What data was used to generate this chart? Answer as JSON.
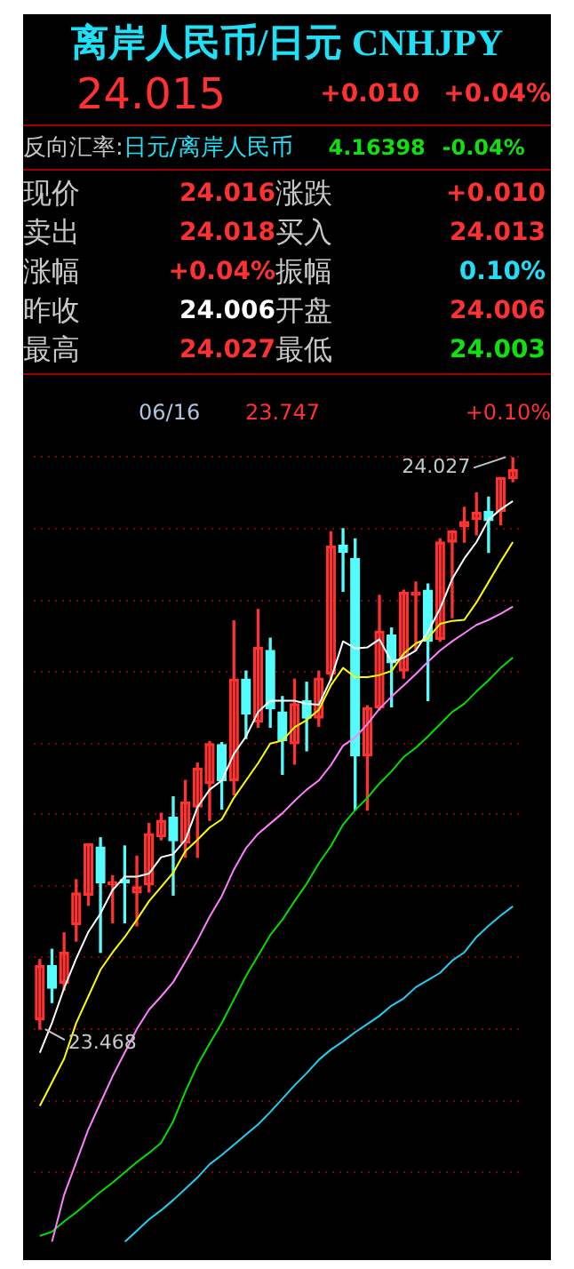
{
  "chart_data": {
    "type": "candlestick",
    "title": "离岸人民币/日元 CNHJPY",
    "annotations": [
      "24.015",
      "+0.010",
      "+0.04%",
      "反向汇率:",
      "日元/离岸人民币",
      "4.16398",
      "-0.04%",
      "现价",
      "24.016",
      "涨跌",
      "+0.010",
      "卖出",
      "24.018",
      "买入",
      "24.013",
      "涨幅",
      "+0.04%",
      "振幅",
      "0.10%",
      "昨收",
      "24.006",
      "开盘",
      "24.006",
      "最高",
      "24.027",
      "最低",
      "24.003",
      "06/16",
      "23.747",
      "+0.10%",
      "24.027",
      "23.468"
    ],
    "categories": [
      null,
      null,
      null,
      null,
      null,
      null,
      null,
      null,
      null,
      null,
      null,
      null,
      null,
      null,
      null,
      null,
      null,
      null,
      null,
      null,
      null,
      null,
      null,
      null,
      null,
      null,
      null,
      null,
      null,
      null,
      null,
      null,
      null,
      null,
      null,
      null,
      null,
      null,
      null,
      null
    ],
    "ohlc": [
      [
        23.477,
        23.536,
        23.468,
        23.53
      ],
      [
        23.53,
        23.546,
        23.494,
        23.508
      ],
      [
        23.513,
        23.562,
        23.506,
        23.543
      ],
      [
        23.57,
        23.614,
        23.554,
        23.601
      ],
      [
        23.599,
        23.649,
        23.589,
        23.649
      ],
      [
        23.646,
        23.655,
        23.543,
        23.611
      ],
      [
        23.609,
        23.618,
        23.572,
        23.612
      ],
      [
        23.614,
        23.647,
        23.572,
        23.611
      ],
      [
        23.601,
        23.637,
        23.569,
        23.607
      ],
      [
        23.609,
        23.669,
        23.602,
        23.659
      ],
      [
        23.656,
        23.679,
        23.653,
        23.672
      ],
      [
        23.675,
        23.695,
        23.599,
        23.652
      ],
      [
        23.65,
        23.711,
        23.636,
        23.69
      ],
      [
        23.685,
        23.728,
        23.636,
        23.723
      ],
      [
        23.708,
        23.749,
        23.672,
        23.747
      ],
      [
        23.746,
        23.748,
        23.683,
        23.711
      ],
      [
        23.711,
        23.867,
        23.697,
        23.81
      ],
      [
        23.81,
        23.818,
        23.752,
        23.776
      ],
      [
        23.768,
        23.878,
        23.763,
        23.841
      ],
      [
        23.838,
        23.85,
        23.763,
        23.781
      ],
      [
        23.778,
        23.793,
        23.717,
        23.75
      ],
      [
        23.747,
        23.81,
        23.727,
        23.786
      ],
      [
        23.789,
        23.807,
        23.74,
        23.772
      ],
      [
        23.772,
        23.818,
        23.764,
        23.811
      ],
      [
        23.815,
        23.954,
        23.809,
        23.94
      ],
      [
        23.941,
        23.957,
        23.896,
        23.934
      ],
      [
        23.928,
        23.947,
        23.682,
        23.735
      ],
      [
        23.735,
        23.784,
        23.682,
        23.782
      ],
      [
        23.782,
        23.892,
        23.78,
        23.857
      ],
      [
        23.853,
        23.86,
        23.783,
        23.826
      ],
      [
        23.818,
        23.897,
        23.811,
        23.895
      ],
      [
        23.892,
        23.905,
        23.838,
        23.895
      ],
      [
        23.897,
        23.903,
        23.789,
        23.847
      ],
      [
        23.849,
        23.947,
        23.847,
        23.944
      ],
      [
        23.944,
        23.955,
        23.87,
        23.955
      ],
      [
        23.959,
        23.978,
        23.944,
        23.964
      ],
      [
        23.966,
        23.992,
        23.951,
        23.973
      ],
      [
        23.974,
        23.988,
        23.934,
        23.965
      ],
      [
        23.974,
        24.007,
        23.961,
        24.007
      ],
      [
        24.006,
        24.027,
        24.003,
        24.015
      ]
    ],
    "colors": [
      "#ff3232",
      "#54fcfc",
      "#ff3232",
      "#ff3232",
      "#ff3232",
      "#54fcfc",
      "#ff3232",
      "#54fcfc",
      "#ff3232",
      "#ff3232",
      "#ff3232",
      "#54fcfc",
      "#ff3232",
      "#ff3232",
      "#ff3232",
      "#54fcfc",
      "#ff3232",
      "#54fcfc",
      "#ff3232",
      "#54fcfc",
      "#54fcfc",
      "#ff3232",
      "#54fcfc",
      "#ff3232",
      "#ff3232",
      "#54fcfc",
      "#54fcfc",
      "#ff3232",
      "#ff3232",
      "#54fcfc",
      "#ff3232",
      "#ff3232",
      "#54fcfc",
      "#ff3232",
      "#ff3232",
      "#ff3232",
      "#ff3232",
      "#54fcfc",
      "#ff3232",
      "#ff3232"
    ],
    "series": [
      {
        "type": "line",
        "color": "#ffffff",
        "values": [
          23.445,
          23.474,
          23.508,
          23.537,
          23.563,
          23.581,
          23.604,
          23.617,
          23.617,
          23.62,
          23.636,
          23.639,
          23.653,
          23.685,
          23.702,
          23.711,
          23.737,
          23.754,
          23.778,
          23.789,
          23.789,
          23.789,
          23.786,
          23.785,
          23.81,
          23.847,
          23.84,
          23.841,
          23.849,
          23.827,
          23.831,
          23.838,
          23.856,
          23.879,
          23.908,
          23.928,
          23.944,
          23.966,
          23.976,
          23.984
        ]
      },
      {
        "type": "line",
        "color": "#ffff00",
        "values": [
          23.393,
          23.416,
          23.439,
          23.474,
          23.5,
          23.526,
          23.543,
          23.558,
          23.575,
          23.593,
          23.607,
          23.621,
          23.642,
          23.653,
          23.665,
          23.673,
          23.694,
          23.711,
          23.728,
          23.747,
          23.75,
          23.763,
          23.77,
          23.78,
          23.804,
          23.821,
          23.812,
          23.812,
          23.814,
          23.818,
          23.835,
          23.845,
          23.85,
          23.864,
          23.867,
          23.868,
          23.885,
          23.905,
          23.925,
          23.944
        ]
      },
      {
        "type": "line",
        "color": "#ff80ff",
        "values": [
          null,
          23.26,
          23.306,
          23.338,
          23.37,
          23.396,
          23.422,
          23.445,
          23.468,
          23.487,
          23.5,
          23.514,
          23.534,
          23.555,
          23.578,
          23.598,
          23.624,
          23.645,
          23.659,
          23.669,
          23.679,
          23.691,
          23.702,
          23.711,
          23.726,
          23.745,
          23.753,
          23.766,
          23.781,
          23.793,
          23.804,
          23.815,
          23.827,
          23.838,
          23.847,
          23.855,
          23.863,
          23.868,
          23.874,
          23.881
        ]
      },
      {
        "type": "line",
        "color": "#00e000",
        "values": [
          23.266,
          23.27,
          23.28,
          23.289,
          23.299,
          23.309,
          23.318,
          23.328,
          23.338,
          23.347,
          23.357,
          23.378,
          23.407,
          23.433,
          23.454,
          23.474,
          23.497,
          23.52,
          23.54,
          23.56,
          23.575,
          23.593,
          23.61,
          23.63,
          23.647,
          23.668,
          23.682,
          23.694,
          23.708,
          23.72,
          23.734,
          23.743,
          23.754,
          23.766,
          23.778,
          23.786,
          23.798,
          23.809,
          23.821,
          23.831
        ]
      },
      {
        "type": "line",
        "color": "#20d0f0",
        "values": [
          null,
          null,
          null,
          null,
          null,
          null,
          null,
          23.26,
          23.271,
          23.282,
          23.291,
          23.301,
          23.312,
          23.323,
          23.336,
          23.345,
          23.355,
          23.365,
          23.375,
          23.387,
          23.4,
          23.413,
          23.425,
          23.438,
          23.448,
          23.456,
          23.465,
          23.473,
          23.481,
          23.491,
          23.498,
          23.509,
          23.516,
          23.523,
          23.535,
          23.543,
          23.558,
          23.569,
          23.579,
          23.588
        ]
      }
    ],
    "yticks": [
      {
        "value": 24.027,
        "label": null
      },
      {
        "value": 23.957,
        "label": null
      },
      {
        "value": 23.887,
        "label": null
      },
      {
        "value": 23.817,
        "label": null
      },
      {
        "value": 23.747,
        "label": null
      },
      {
        "value": 23.678,
        "label": null
      },
      {
        "value": 23.608,
        "label": null
      },
      {
        "value": 23.538,
        "label": null
      },
      {
        "value": 23.468,
        "label": null
      },
      {
        "value": 23.398,
        "label": null
      },
      {
        "value": 23.328,
        "label": null
      }
    ],
    "grid": "y"
  }
}
